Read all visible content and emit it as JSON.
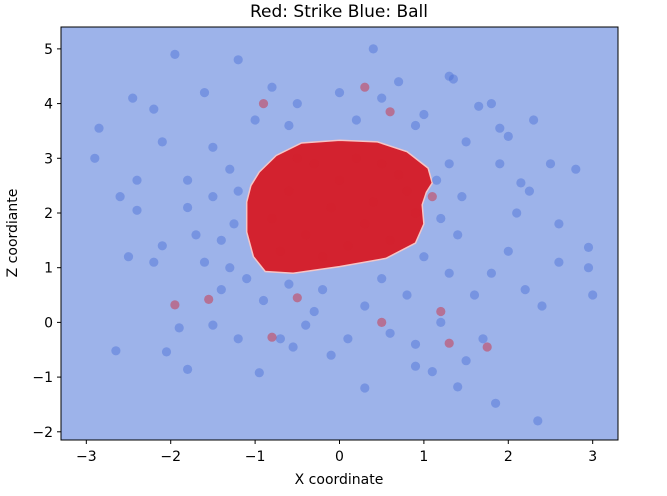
{
  "chart_data": {
    "type": "scatter",
    "title": "Red: Strike   Blue: Ball",
    "xlabel": "X coordinate",
    "ylabel": "Z coordiante",
    "xlim": [
      -3.3,
      3.3
    ],
    "ylim": [
      -2.15,
      5.4
    ],
    "xticks": [
      -3,
      -2,
      -1,
      0,
      1,
      2,
      3
    ],
    "yticks": [
      -2,
      -1,
      0,
      1,
      2,
      3,
      4,
      5
    ],
    "grid": false,
    "background_color": "#9db3ea",
    "strike_region_color": "#d3222f",
    "strike_region_boundary": [
      [
        -0.95,
        2.75
      ],
      [
        -0.75,
        3.05
      ],
      [
        -0.45,
        3.28
      ],
      [
        0.0,
        3.33
      ],
      [
        0.45,
        3.3
      ],
      [
        0.8,
        3.12
      ],
      [
        1.05,
        2.82
      ],
      [
        1.1,
        2.55
      ],
      [
        1.03,
        2.38
      ],
      [
        0.98,
        2.15
      ],
      [
        1.0,
        1.8
      ],
      [
        0.9,
        1.45
      ],
      [
        0.55,
        1.17
      ],
      [
        0.0,
        1.02
      ],
      [
        -0.55,
        0.9
      ],
      [
        -0.88,
        0.93
      ],
      [
        -1.02,
        1.2
      ],
      [
        -1.1,
        1.65
      ],
      [
        -1.1,
        2.2
      ],
      [
        -1.05,
        2.5
      ]
    ],
    "series": [
      {
        "name": "Ball",
        "color": "#4a6fd6",
        "points": [
          [
            -2.9,
            3.0
          ],
          [
            -2.85,
            3.55
          ],
          [
            -2.65,
            -0.52
          ],
          [
            -2.45,
            4.1
          ],
          [
            -2.4,
            2.05
          ],
          [
            -1.95,
            4.9
          ],
          [
            -1.8,
            -0.86
          ],
          [
            -1.2,
            4.8
          ],
          [
            0.4,
            5.0
          ],
          [
            -1.9,
            -0.1
          ],
          [
            -2.05,
            -0.54
          ],
          [
            -0.95,
            -0.92
          ],
          [
            -0.55,
            -0.45
          ],
          [
            -0.1,
            -0.6
          ],
          [
            0.3,
            -1.2
          ],
          [
            0.9,
            -0.8
          ],
          [
            1.1,
            -0.9
          ],
          [
            1.4,
            -1.18
          ],
          [
            1.5,
            -0.7
          ],
          [
            1.85,
            -1.48
          ],
          [
            2.35,
            -1.8
          ],
          [
            2.8,
            2.8
          ],
          [
            2.95,
            1.37
          ],
          [
            3.0,
            0.5
          ],
          [
            2.95,
            1.0
          ],
          [
            2.6,
            1.1
          ],
          [
            2.4,
            0.3
          ],
          [
            2.3,
            3.7
          ],
          [
            2.0,
            3.4
          ],
          [
            1.9,
            3.55
          ],
          [
            1.35,
            4.45
          ],
          [
            1.3,
            4.5
          ],
          [
            1.65,
            3.95
          ],
          [
            2.25,
            2.4
          ],
          [
            2.15,
            2.55
          ],
          [
            -2.1,
            3.3
          ],
          [
            -2.2,
            1.1
          ],
          [
            -2.1,
            1.4
          ],
          [
            -1.8,
            2.6
          ],
          [
            -1.6,
            1.1
          ],
          [
            -1.4,
            0.6
          ],
          [
            -1.2,
            -0.3
          ],
          [
            -0.4,
            -0.05
          ],
          [
            0.6,
            -0.2
          ],
          [
            1.2,
            0.0
          ],
          [
            1.6,
            0.5
          ],
          [
            1.8,
            0.9
          ],
          [
            2.0,
            1.3
          ],
          [
            2.1,
            2.0
          ],
          [
            1.9,
            2.9
          ],
          [
            1.5,
            3.3
          ],
          [
            1.0,
            3.8
          ],
          [
            0.5,
            4.1
          ],
          [
            0.0,
            4.2
          ],
          [
            -0.5,
            4.0
          ],
          [
            -1.0,
            3.7
          ],
          [
            -1.5,
            3.2
          ],
          [
            -1.8,
            2.1
          ],
          [
            -1.7,
            1.6
          ],
          [
            -1.3,
            1.0
          ],
          [
            -0.9,
            0.4
          ],
          [
            -0.3,
            0.2
          ],
          [
            0.3,
            0.3
          ],
          [
            0.8,
            0.5
          ],
          [
            1.3,
            0.9
          ],
          [
            1.4,
            1.6
          ],
          [
            1.45,
            2.3
          ],
          [
            1.3,
            2.9
          ],
          [
            0.9,
            3.6
          ],
          [
            0.2,
            3.7
          ],
          [
            -0.6,
            3.6
          ],
          [
            -1.3,
            2.8
          ],
          [
            -1.5,
            2.3
          ],
          [
            -1.4,
            1.5
          ],
          [
            -2.4,
            2.6
          ],
          [
            -2.2,
            3.9
          ],
          [
            -1.6,
            4.2
          ],
          [
            -0.8,
            4.3
          ],
          [
            0.7,
            4.4
          ],
          [
            1.8,
            4.0
          ],
          [
            2.5,
            2.9
          ],
          [
            2.6,
            1.8
          ],
          [
            2.2,
            0.6
          ],
          [
            1.7,
            -0.3
          ],
          [
            0.9,
            -0.4
          ],
          [
            0.1,
            -0.3
          ],
          [
            -0.7,
            -0.3
          ],
          [
            -1.5,
            -0.05
          ],
          [
            -2.5,
            1.2
          ],
          [
            -2.6,
            2.3
          ],
          [
            -0.2,
            0.6
          ],
          [
            0.5,
            0.8
          ],
          [
            1.0,
            1.2
          ],
          [
            -0.6,
            0.7
          ],
          [
            -1.1,
            0.8
          ],
          [
            1.15,
            2.6
          ],
          [
            1.2,
            1.9
          ],
          [
            -1.2,
            2.4
          ],
          [
            -1.25,
            1.8
          ]
        ]
      },
      {
        "name": "Strike",
        "color": "#d3222f",
        "points": [
          [
            -1.95,
            0.32
          ],
          [
            -1.55,
            0.42
          ],
          [
            -0.8,
            -0.27
          ],
          [
            1.3,
            -0.38
          ],
          [
            1.75,
            -0.45
          ],
          [
            1.2,
            0.2
          ],
          [
            0.5,
            0.0
          ],
          [
            -0.5,
            0.45
          ],
          [
            0.3,
            4.3
          ],
          [
            0.6,
            3.85
          ],
          [
            -0.9,
            4.0
          ],
          [
            -0.2,
            1.2
          ],
          [
            0.3,
            1.8
          ],
          [
            -0.6,
            2.4
          ],
          [
            0.0,
            2.6
          ],
          [
            0.4,
            2.2
          ],
          [
            -0.4,
            1.6
          ],
          [
            0.7,
            2.7
          ],
          [
            -0.8,
            1.9
          ],
          [
            0.2,
            3.0
          ],
          [
            -0.3,
            2.9
          ],
          [
            0.6,
            1.5
          ],
          [
            0.9,
            2.0
          ],
          [
            -0.7,
            1.3
          ],
          [
            0.1,
            1.4
          ],
          [
            -0.1,
            2.1
          ],
          [
            0.5,
            2.9
          ],
          [
            -0.5,
            3.0
          ],
          [
            0.8,
            2.4
          ],
          [
            1.1,
            2.3
          ]
        ]
      }
    ]
  }
}
